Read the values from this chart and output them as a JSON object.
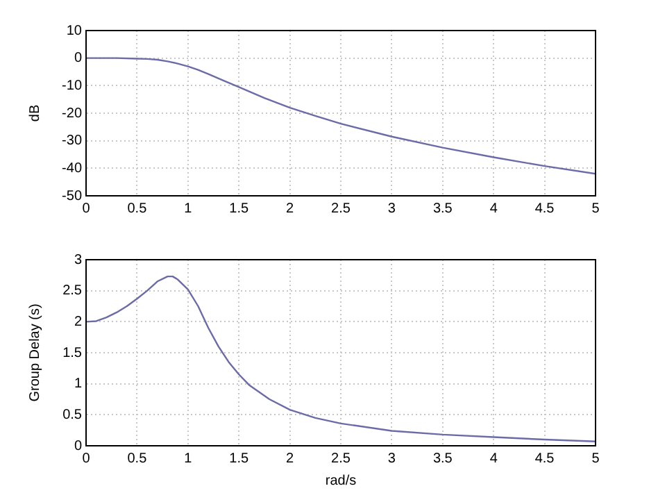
{
  "chart_data": [
    {
      "type": "line",
      "ylabel": "dB",
      "xlim": [
        0,
        5
      ],
      "ylim": [
        -50,
        10
      ],
      "xticks": [
        0,
        0.5,
        1,
        1.5,
        2,
        2.5,
        3,
        3.5,
        4,
        4.5,
        5
      ],
      "yticks": [
        -50,
        -40,
        -30,
        -20,
        -10,
        0,
        10
      ],
      "grid": true,
      "marker": "none",
      "line_style": "solid",
      "series": [
        {
          "color": "#6b6ba8",
          "x": [
            0,
            0.3,
            0.5,
            0.6,
            0.7,
            0.8,
            0.9,
            1,
            1.1,
            1.2,
            1.35,
            1.5,
            1.75,
            2,
            2.25,
            2.5,
            3,
            3.5,
            4,
            4.5,
            5
          ],
          "values": [
            0,
            0,
            -0.2,
            -0.3,
            -0.6,
            -1.2,
            -2,
            -3,
            -4.3,
            -5.8,
            -8.2,
            -10.5,
            -14.5,
            -18,
            -21,
            -23.8,
            -28.5,
            -32.5,
            -36,
            -39.2,
            -42
          ]
        }
      ]
    },
    {
      "type": "line",
      "xlabel": "rad/s",
      "ylabel": "Group Delay (s)",
      "xlim": [
        0,
        5
      ],
      "ylim": [
        0,
        3
      ],
      "xticks": [
        0,
        0.5,
        1,
        1.5,
        2,
        2.5,
        3,
        3.5,
        4,
        4.5,
        5
      ],
      "yticks": [
        0,
        0.5,
        1,
        1.5,
        2,
        2.5,
        3
      ],
      "grid": true,
      "marker": "none",
      "line_style": "solid",
      "series": [
        {
          "color": "#6b6ba8",
          "x": [
            0,
            0.1,
            0.2,
            0.3,
            0.4,
            0.5,
            0.6,
            0.7,
            0.8,
            0.85,
            0.9,
            1,
            1.1,
            1.2,
            1.3,
            1.4,
            1.5,
            1.6,
            1.8,
            2,
            2.25,
            2.5,
            3,
            3.5,
            4,
            4.5,
            5
          ],
          "values": [
            2,
            2.01,
            2.07,
            2.15,
            2.25,
            2.37,
            2.5,
            2.65,
            2.73,
            2.73,
            2.68,
            2.52,
            2.25,
            1.9,
            1.6,
            1.35,
            1.15,
            0.98,
            0.75,
            0.58,
            0.45,
            0.36,
            0.24,
            0.18,
            0.14,
            0.1,
            0.07
          ]
        }
      ]
    }
  ]
}
